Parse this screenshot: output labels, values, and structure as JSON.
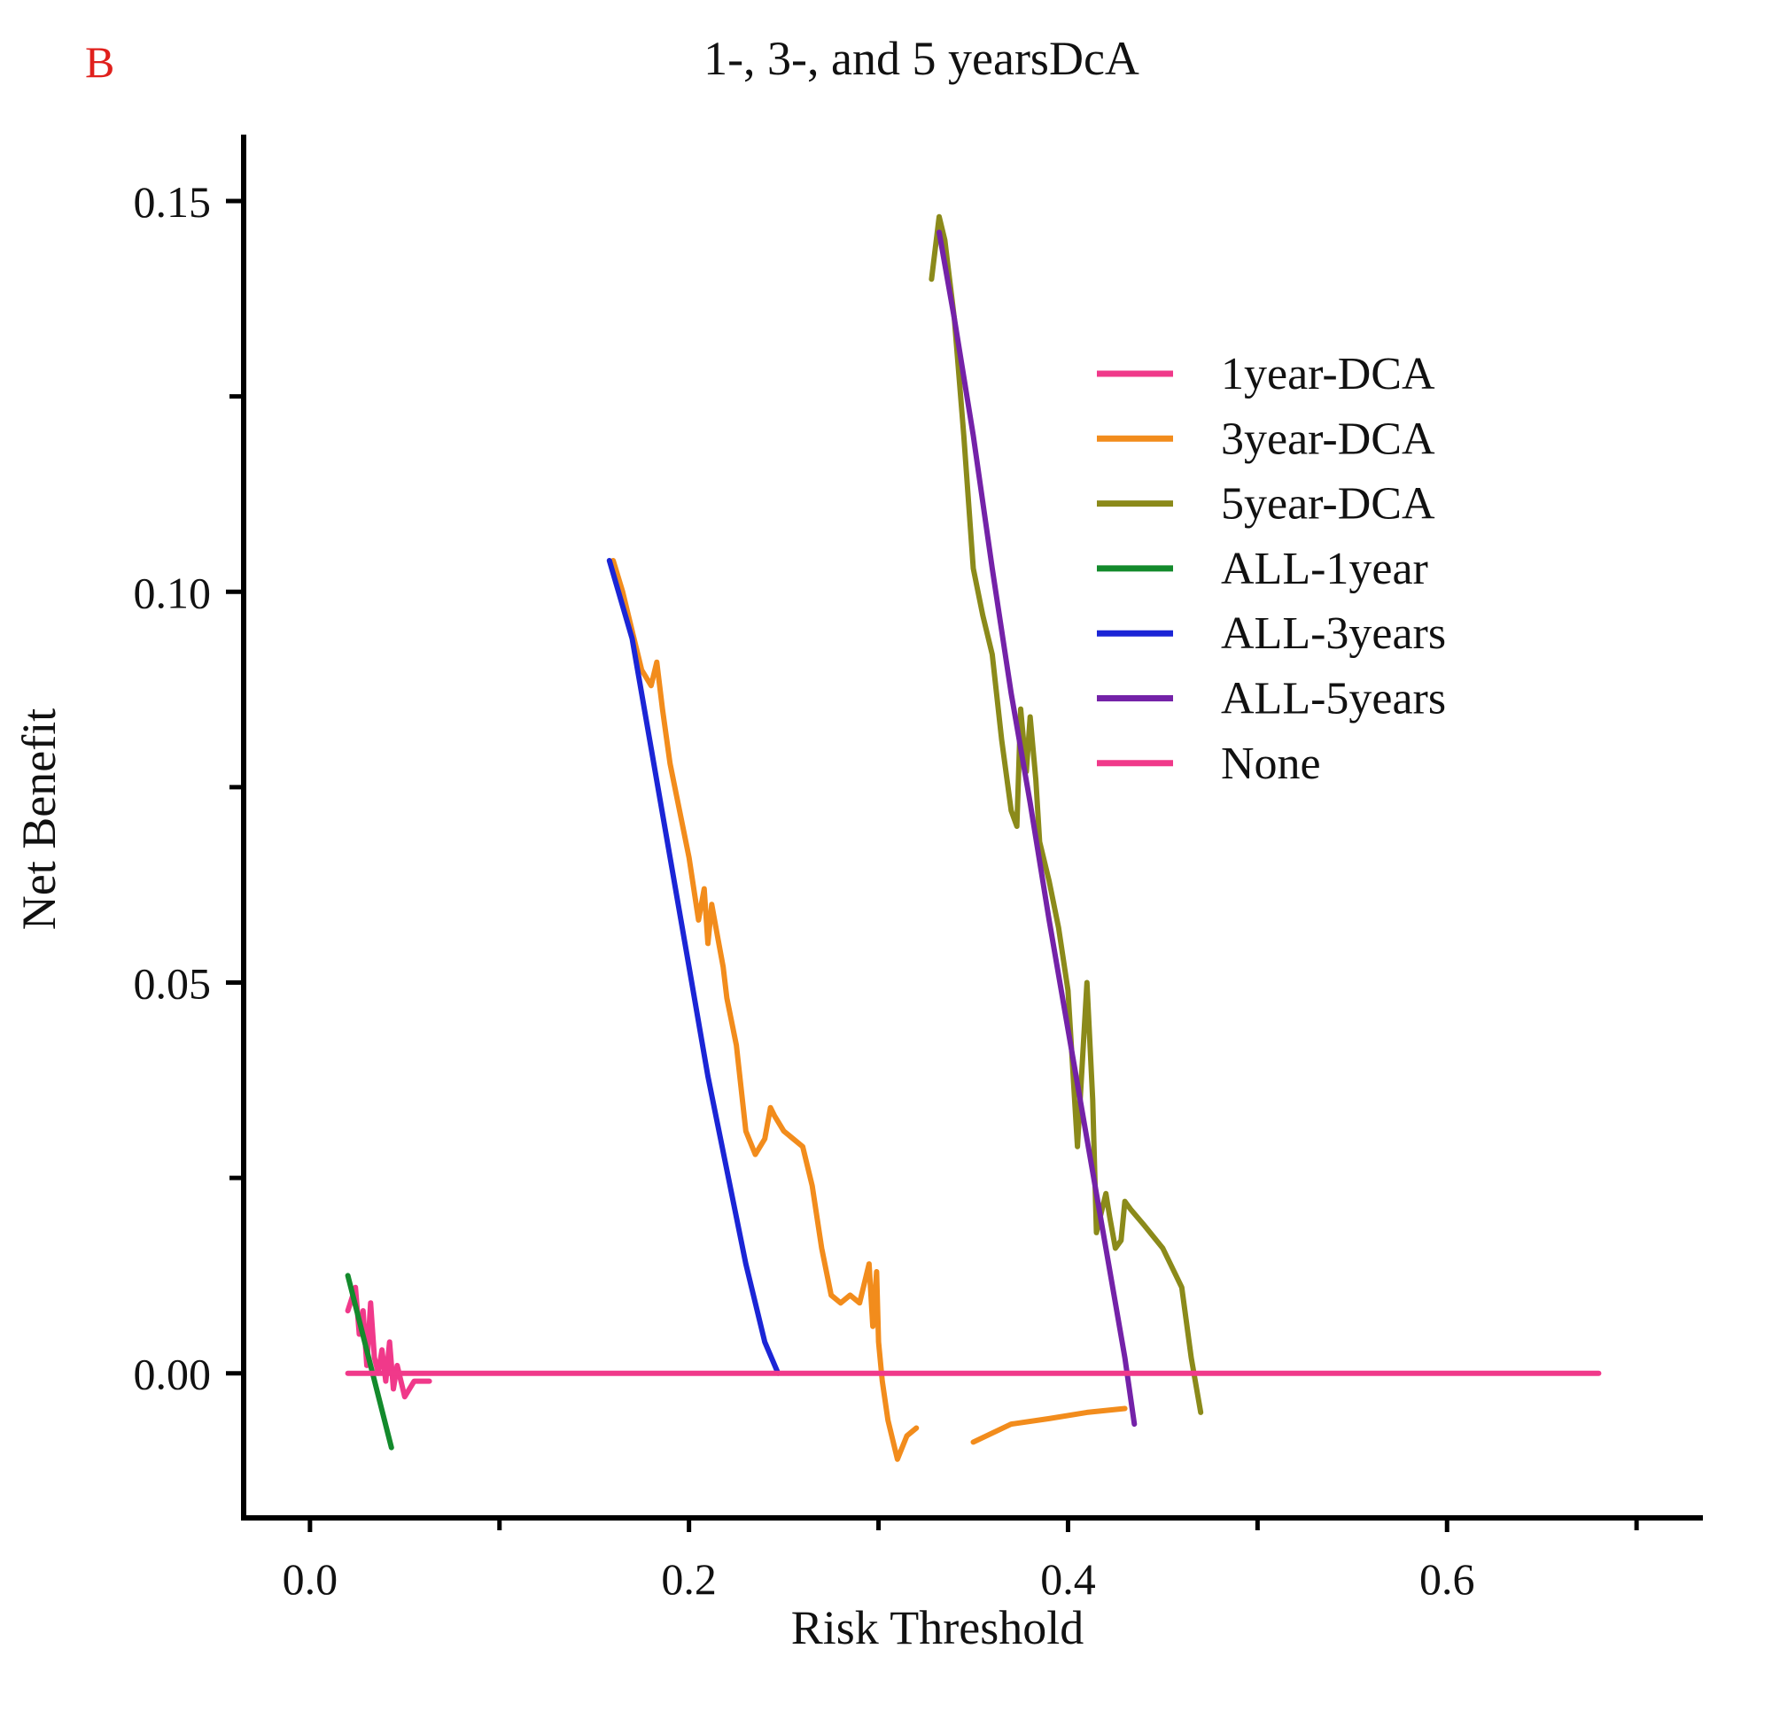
{
  "panel_label": "B",
  "panel_label_color": "#e0201c",
  "chart_data": {
    "type": "line",
    "title": "1-, 3-, and 5 yearsDcA",
    "xlabel": "Risk Threshold",
    "ylabel": "Net Benefit",
    "xlim": [
      -0.035,
      0.735
    ],
    "ylim": [
      -0.0185,
      0.1585
    ],
    "xticks": [
      0.0,
      0.2,
      0.4,
      0.6
    ],
    "xtick_labels": [
      "0.0",
      "0.2",
      "0.4",
      "0.6"
    ],
    "xticks_minor": [
      0.1,
      0.3,
      0.5,
      0.7
    ],
    "yticks": [
      0.0,
      0.05,
      0.1,
      0.15
    ],
    "ytick_labels": [
      "0.00",
      "0.05",
      "0.10",
      "0.15"
    ],
    "yticks_minor": [
      0.025,
      0.075,
      0.125
    ],
    "legend_position": "top-right",
    "series": [
      {
        "name": "1year-DCA",
        "color": "#f0398a",
        "x": [
          0.02,
          0.024,
          0.026,
          0.028,
          0.03,
          0.032,
          0.034,
          0.036,
          0.038,
          0.04,
          0.042,
          0.044,
          0.046,
          0.05,
          0.055,
          0.06,
          0.063
        ],
        "y": [
          0.008,
          0.011,
          0.005,
          0.008,
          0.001,
          0.009,
          0.002,
          0.0,
          0.003,
          -0.001,
          0.004,
          -0.002,
          0.001,
          -0.003,
          -0.001,
          -0.001,
          -0.001
        ]
      },
      {
        "name": "3year-DCA",
        "color": "#f28c1c",
        "segments": [
          {
            "x": [
              0.16,
              0.165,
              0.17,
              0.175,
              0.18,
              0.183,
              0.186,
              0.19,
              0.195,
              0.2,
              0.205,
              0.208,
              0.21,
              0.212,
              0.215,
              0.218,
              0.22,
              0.225,
              0.23,
              0.235,
              0.24,
              0.243,
              0.245,
              0.25,
              0.255,
              0.26,
              0.265,
              0.27,
              0.275,
              0.28,
              0.285,
              0.29,
              0.295,
              0.297,
              0.299,
              0.3,
              0.302,
              0.305,
              0.31,
              0.315,
              0.32
            ],
            "y": [
              0.104,
              0.1,
              0.095,
              0.09,
              0.088,
              0.091,
              0.085,
              0.078,
              0.072,
              0.066,
              0.058,
              0.062,
              0.055,
              0.06,
              0.056,
              0.052,
              0.048,
              0.042,
              0.031,
              0.028,
              0.03,
              0.034,
              0.033,
              0.031,
              0.03,
              0.029,
              0.024,
              0.016,
              0.01,
              0.009,
              0.01,
              0.009,
              0.014,
              0.006,
              0.013,
              0.004,
              -0.001,
              -0.006,
              -0.011,
              -0.008,
              -0.007
            ]
          },
          {
            "x": [
              0.35,
              0.37,
              0.39,
              0.41,
              0.43
            ],
            "y": [
              -0.0088,
              -0.0065,
              -0.0058,
              -0.005,
              -0.0045
            ]
          }
        ]
      },
      {
        "name": "5year-DCA",
        "color": "#8b8a1a",
        "x": [
          0.328,
          0.332,
          0.335,
          0.34,
          0.345,
          0.35,
          0.355,
          0.36,
          0.365,
          0.37,
          0.373,
          0.375,
          0.378,
          0.38,
          0.383,
          0.385,
          0.39,
          0.395,
          0.4,
          0.405,
          0.41,
          0.413,
          0.415,
          0.418,
          0.42,
          0.422,
          0.425,
          0.428,
          0.43,
          0.433,
          0.44,
          0.45,
          0.46,
          0.465,
          0.47
        ],
        "y": [
          0.14,
          0.148,
          0.145,
          0.135,
          0.12,
          0.103,
          0.097,
          0.092,
          0.081,
          0.072,
          0.07,
          0.085,
          0.077,
          0.084,
          0.076,
          0.068,
          0.063,
          0.057,
          0.049,
          0.029,
          0.05,
          0.035,
          0.018,
          0.021,
          0.023,
          0.02,
          0.016,
          0.017,
          0.022,
          0.021,
          0.019,
          0.016,
          0.011,
          0.002,
          -0.005
        ]
      },
      {
        "name": "ALL-1year",
        "color": "#138a2c",
        "x": [
          0.02,
          0.043
        ],
        "y": [
          0.0125,
          -0.0095
        ]
      },
      {
        "name": "ALL-3years",
        "color": "#1b25d6",
        "x": [
          0.158,
          0.17,
          0.18,
          0.19,
          0.2,
          0.21,
          0.22,
          0.23,
          0.24,
          0.247
        ],
        "y": [
          0.104,
          0.094,
          0.08,
          0.066,
          0.052,
          0.038,
          0.026,
          0.014,
          0.004,
          0.0
        ]
      },
      {
        "name": "ALL-5years",
        "color": "#7422a8",
        "x": [
          0.332,
          0.34,
          0.35,
          0.36,
          0.37,
          0.38,
          0.39,
          0.4,
          0.41,
          0.42,
          0.43,
          0.435
        ],
        "y": [
          0.146,
          0.135,
          0.12,
          0.103,
          0.087,
          0.073,
          0.058,
          0.044,
          0.03,
          0.016,
          0.002,
          -0.0065
        ]
      },
      {
        "name": "None",
        "color": "#f0398a",
        "x": [
          0.02,
          0.68
        ],
        "y": [
          0.0,
          0.0
        ]
      }
    ]
  }
}
